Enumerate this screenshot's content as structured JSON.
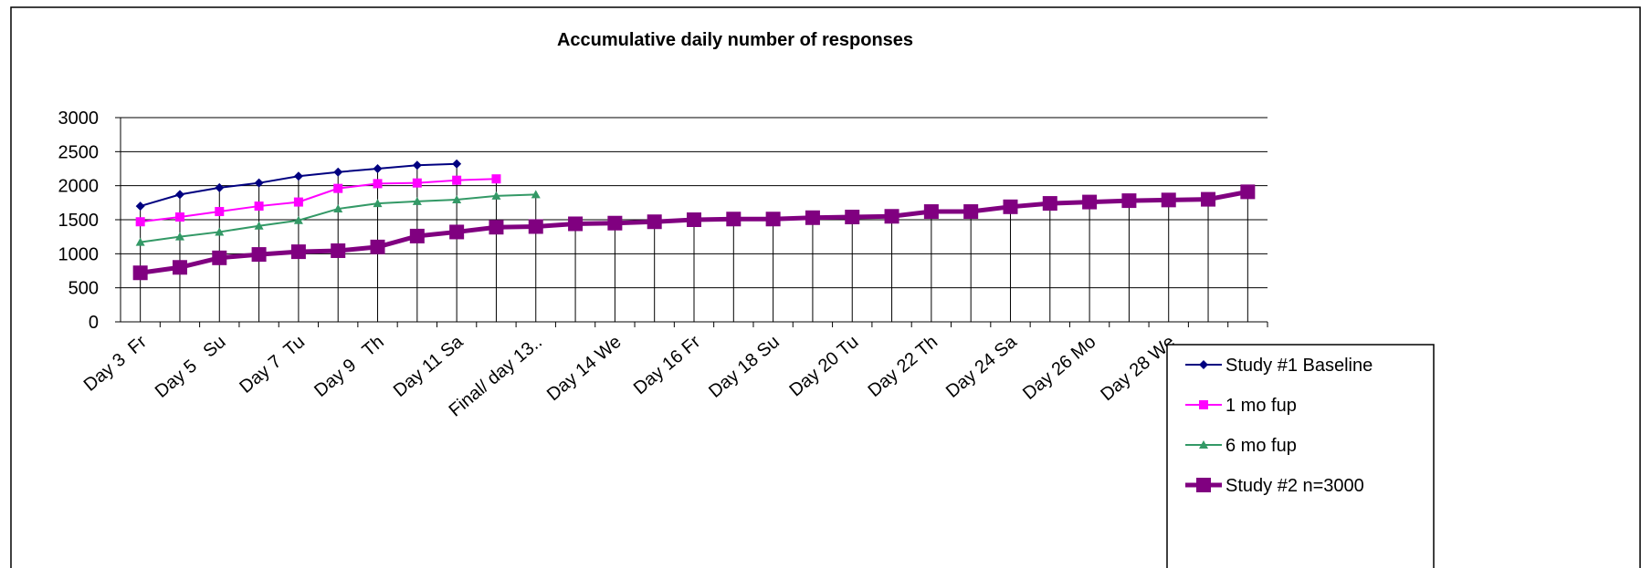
{
  "chart_data": {
    "type": "line",
    "title": "Accumulative daily number of responses",
    "categories": [
      "Day 3  Fr",
      null,
      "Day 5   Su",
      null,
      "Day 7  Tu",
      null,
      "Day 9   Th",
      null,
      "Day 11 Sa",
      null,
      "Final/ day 13..",
      null,
      "Day 14 We",
      null,
      "Day 16 Fr",
      null,
      "Day 18 Su",
      null,
      "Day 20 Tu",
      null,
      "Day 22 Th",
      null,
      "Day 24 Sa",
      null,
      "Day 26 Mo",
      null,
      "Day 28 We",
      null,
      null
    ],
    "ylim": [
      0,
      3000
    ],
    "yticks": [
      0,
      500,
      1000,
      1500,
      2000,
      2500,
      3000
    ],
    "grid": true,
    "legend": "bottom-right",
    "series": [
      {
        "name": "Study #1 Baseline",
        "color": "#000080",
        "marker": "diamond",
        "line_width": 2,
        "values": [
          1700,
          1870,
          1970,
          2040,
          2140,
          2200,
          2250,
          2300,
          2320,
          null,
          null,
          null,
          null,
          null,
          null,
          null,
          null,
          null,
          null,
          null,
          null,
          null,
          null,
          null,
          null,
          null,
          null,
          null,
          null
        ]
      },
      {
        "name": "1 mo fup",
        "color": "#ff00ff",
        "marker": "square",
        "line_width": 2,
        "values": [
          1470,
          1540,
          1620,
          1700,
          1760,
          1960,
          2030,
          2040,
          2080,
          2100,
          null,
          null,
          null,
          null,
          null,
          null,
          null,
          null,
          null,
          null,
          null,
          null,
          null,
          null,
          null,
          null,
          null,
          null,
          null
        ]
      },
      {
        "name": "6 mo fup",
        "color": "#339966",
        "marker": "triangle",
        "line_width": 2,
        "values": [
          1170,
          1250,
          1320,
          1410,
          1490,
          1660,
          1740,
          1770,
          1795,
          1850,
          1870,
          null,
          null,
          null,
          null,
          null,
          null,
          null,
          null,
          null,
          null,
          null,
          null,
          null,
          null,
          null,
          null,
          null,
          null
        ]
      },
      {
        "name": "Study #2 n=3000",
        "color": "#800080",
        "marker": "square",
        "line_width": 5,
        "values": [
          720,
          800,
          940,
          990,
          1030,
          1045,
          1100,
          1260,
          1320,
          1390,
          1400,
          1440,
          1450,
          1470,
          1500,
          1510,
          1510,
          1530,
          1540,
          1550,
          1620,
          1620,
          1690,
          1740,
          1760,
          1780,
          1790,
          1800,
          1910
        ]
      }
    ]
  }
}
